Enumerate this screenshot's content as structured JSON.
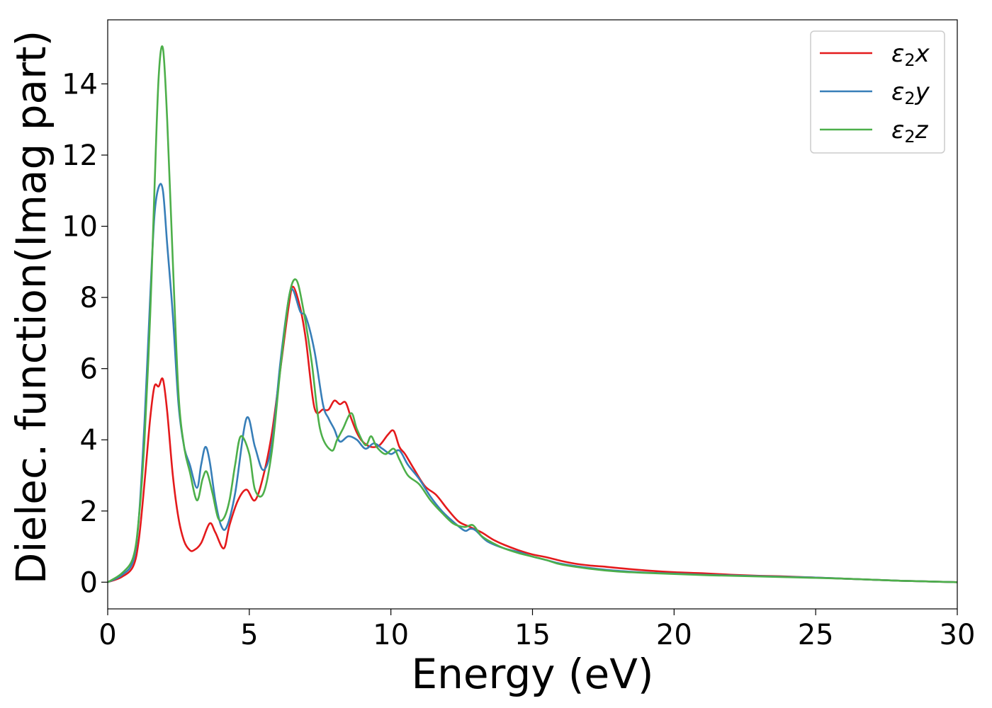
{
  "chart_data": {
    "type": "line",
    "xlabel": "Energy (eV)",
    "ylabel": "Dielec. function(Imag part)",
    "xlim": [
      0,
      30
    ],
    "ylim": [
      -0.75,
      15.8
    ],
    "xticks": [
      0,
      5,
      10,
      15,
      20,
      25,
      30
    ],
    "yticks": [
      0,
      2,
      4,
      6,
      8,
      10,
      12,
      14
    ],
    "grid": false,
    "legend_position": "top-right",
    "series": [
      {
        "name": "ε₂x",
        "legend_base": "ε",
        "legend_sub": "2",
        "legend_suffix": "x",
        "color": "#e41a1c",
        "x": [
          0,
          0.5,
          0.9,
          1.1,
          1.3,
          1.5,
          1.65,
          1.8,
          1.95,
          2.1,
          2.3,
          2.5,
          2.7,
          2.9,
          3.05,
          3.3,
          3.6,
          3.8,
          4.1,
          4.3,
          4.6,
          4.9,
          5.2,
          5.5,
          5.8,
          6.1,
          6.4,
          6.55,
          6.8,
          7.0,
          7.3,
          7.6,
          7.8,
          8.0,
          8.2,
          8.4,
          8.6,
          8.8,
          9.0,
          9.3,
          9.6,
          9.9,
          10.1,
          10.3,
          10.5,
          10.8,
          11.2,
          11.6,
          12.0,
          12.4,
          12.8,
          13.2,
          13.6,
          14.0,
          14.5,
          15.0,
          15.5,
          16.0,
          16.5,
          17.0,
          17.5,
          18.0,
          19.0,
          20.0,
          21.0,
          22.0,
          23.0,
          24.0,
          25.0,
          26.0,
          27.0,
          28.0,
          29.0,
          30.0
        ],
        "values": [
          0,
          0.15,
          0.45,
          1.2,
          2.8,
          4.6,
          5.5,
          5.5,
          5.7,
          4.8,
          3.0,
          1.8,
          1.15,
          0.9,
          0.9,
          1.1,
          1.65,
          1.4,
          0.95,
          1.6,
          2.3,
          2.6,
          2.3,
          3.0,
          4.2,
          6.0,
          7.8,
          8.3,
          7.7,
          6.8,
          4.9,
          4.85,
          4.85,
          5.1,
          5.0,
          5.05,
          4.6,
          4.2,
          3.95,
          3.8,
          3.85,
          4.15,
          4.25,
          3.8,
          3.6,
          3.2,
          2.7,
          2.45,
          2.05,
          1.7,
          1.55,
          1.4,
          1.2,
          1.05,
          0.9,
          0.78,
          0.7,
          0.6,
          0.52,
          0.47,
          0.44,
          0.4,
          0.33,
          0.28,
          0.25,
          0.21,
          0.18,
          0.16,
          0.13,
          0.1,
          0.07,
          0.04,
          0.02,
          0.0
        ]
      },
      {
        "name": "ε₂y",
        "legend_base": "ε",
        "legend_sub": "2",
        "legend_suffix": "y",
        "color": "#377eb8",
        "x": [
          0,
          0.5,
          0.9,
          1.1,
          1.3,
          1.5,
          1.65,
          1.8,
          1.95,
          2.1,
          2.3,
          2.5,
          2.7,
          2.9,
          3.15,
          3.3,
          3.45,
          3.6,
          3.8,
          4.0,
          4.2,
          4.5,
          4.9,
          5.2,
          5.5,
          5.8,
          6.1,
          6.4,
          6.55,
          6.8,
          7.0,
          7.3,
          7.6,
          7.8,
          8.0,
          8.2,
          8.5,
          8.8,
          9.1,
          9.4,
          9.7,
          10.0,
          10.3,
          10.6,
          11.0,
          11.4,
          11.8,
          12.2,
          12.6,
          12.8,
          13.0,
          13.4,
          14.0,
          14.5,
          15.0,
          15.5,
          16.0,
          17.0,
          18.0,
          19.0,
          20.0,
          21.0,
          22.0,
          23.0,
          24.0,
          25.0,
          26.0,
          27.0,
          28.0,
          29.0,
          30.0
        ],
        "values": [
          0,
          0.2,
          0.6,
          1.8,
          4.5,
          8.0,
          10.3,
          11.1,
          11.0,
          9.5,
          7.5,
          5.0,
          3.8,
          3.3,
          2.65,
          3.3,
          3.8,
          3.4,
          2.3,
          1.6,
          1.55,
          2.5,
          4.6,
          3.8,
          3.15,
          3.9,
          6.2,
          8.0,
          8.2,
          7.6,
          7.45,
          6.5,
          5.0,
          4.6,
          4.3,
          3.95,
          4.1,
          4.0,
          3.75,
          3.9,
          3.75,
          3.6,
          3.7,
          3.3,
          2.9,
          2.4,
          2.0,
          1.7,
          1.45,
          1.5,
          1.45,
          1.15,
          0.95,
          0.85,
          0.72,
          0.62,
          0.52,
          0.4,
          0.32,
          0.27,
          0.24,
          0.21,
          0.19,
          0.17,
          0.15,
          0.13,
          0.1,
          0.07,
          0.04,
          0.02,
          0.0
        ]
      },
      {
        "name": "ε₂z",
        "legend_base": "ε",
        "legend_sub": "2",
        "legend_suffix": "z",
        "color": "#4daf4a",
        "x": [
          0,
          0.5,
          0.9,
          1.1,
          1.3,
          1.5,
          1.65,
          1.8,
          1.95,
          2.1,
          2.3,
          2.5,
          2.7,
          2.9,
          3.15,
          3.35,
          3.5,
          3.7,
          3.9,
          4.1,
          4.3,
          4.5,
          4.7,
          5.0,
          5.2,
          5.5,
          5.8,
          6.1,
          6.4,
          6.65,
          6.9,
          7.2,
          7.5,
          7.9,
          8.1,
          8.3,
          8.6,
          8.8,
          9.1,
          9.3,
          9.5,
          9.8,
          10.1,
          10.3,
          10.6,
          11.0,
          11.4,
          11.8,
          12.2,
          12.6,
          12.9,
          13.2,
          13.6,
          14.0,
          14.5,
          15.0,
          15.5,
          16.0,
          17.0,
          18.0,
          19.0,
          20.0,
          21.0,
          22.0,
          23.0,
          24.0,
          25.0,
          26.0,
          27.0,
          28.0,
          29.0,
          30.0
        ],
        "values": [
          0,
          0.25,
          0.7,
          1.8,
          4.0,
          7.5,
          11.0,
          14.2,
          15.0,
          13.0,
          9.0,
          5.3,
          3.8,
          3.1,
          2.3,
          2.9,
          3.1,
          2.5,
          1.8,
          1.8,
          2.3,
          3.3,
          4.1,
          3.6,
          2.6,
          2.5,
          3.7,
          6.0,
          8.0,
          8.5,
          7.7,
          6.2,
          4.3,
          3.7,
          4.0,
          4.3,
          4.75,
          4.3,
          3.85,
          4.1,
          3.8,
          3.6,
          3.75,
          3.45,
          3.0,
          2.75,
          2.3,
          1.95,
          1.65,
          1.55,
          1.6,
          1.3,
          1.1,
          0.95,
          0.82,
          0.72,
          0.62,
          0.5,
          0.38,
          0.3,
          0.26,
          0.23,
          0.2,
          0.18,
          0.16,
          0.14,
          0.12,
          0.1,
          0.07,
          0.04,
          0.02,
          0.0
        ]
      }
    ]
  }
}
